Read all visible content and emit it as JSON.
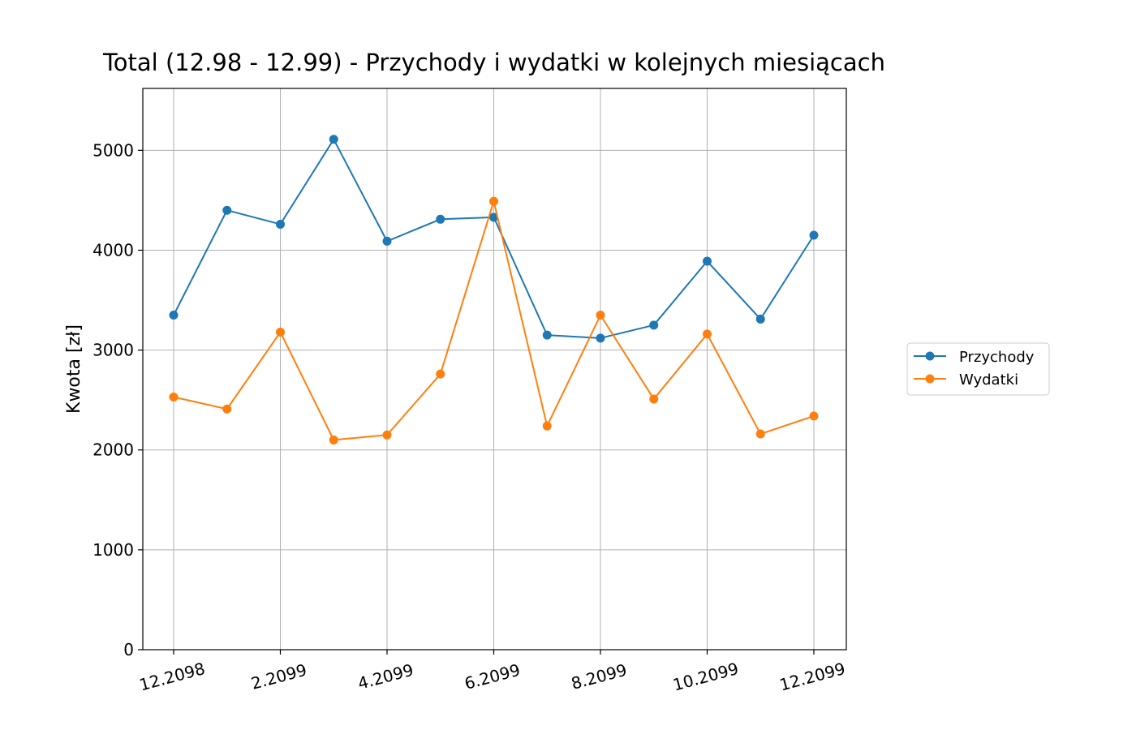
{
  "chart_data": {
    "type": "line",
    "title": "Total (12.98 - 12.99) - Przychody i wydatki w kolejnych miesiącach",
    "xlabel": "",
    "ylabel": "Kwota [zł]",
    "x": [
      "12.2098",
      "1.2099",
      "2.2099",
      "3.2099",
      "4.2099",
      "5.2099",
      "6.2099",
      "7.2099",
      "8.2099",
      "9.2099",
      "10.2099",
      "11.2099",
      "12.2099"
    ],
    "x_tick_labels": [
      "12.2098",
      "2.2099",
      "4.2099",
      "6.2099",
      "8.2099",
      "10.2099",
      "12.2099"
    ],
    "ylim": [
      0,
      5620
    ],
    "y_ticks": [
      0,
      1000,
      2000,
      3000,
      4000,
      5000
    ],
    "y_tick_labels": [
      "0",
      "1000",
      "2000",
      "3000",
      "4000",
      "5000"
    ],
    "grid": true,
    "legend_position": "right",
    "series": [
      {
        "name": "Przychody",
        "color": "#1f77b4",
        "values": [
          3350,
          4400,
          4260,
          5110,
          4090,
          4310,
          4330,
          3150,
          3120,
          3250,
          3890,
          3310,
          4150
        ]
      },
      {
        "name": "Wydatki",
        "color": "#ff7f0e",
        "values": [
          2530,
          2410,
          3180,
          2100,
          2150,
          2760,
          4490,
          2240,
          3350,
          2510,
          3160,
          2160,
          2340
        ]
      }
    ]
  }
}
